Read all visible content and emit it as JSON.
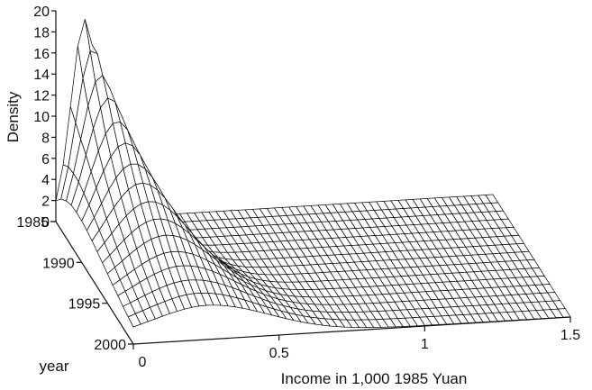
{
  "chart_data": {
    "type": "surface",
    "title": "",
    "xlabel": "Income in 1,000 1985 Yuan",
    "ylabel": "year",
    "zlabel": "Density",
    "x_ticks": [
      "0",
      "0.5",
      "1",
      "1.5"
    ],
    "x_range": [
      0,
      1.5
    ],
    "year_ticks": [
      "1985",
      "1990",
      "1995",
      "2000"
    ],
    "year_range": [
      1985,
      2000
    ],
    "z_ticks": [
      "0",
      "2",
      "4",
      "6",
      "8",
      "10",
      "12",
      "14",
      "16",
      "18",
      "20"
    ],
    "z_range": [
      0,
      20
    ],
    "grid": false,
    "peak_series": [
      {
        "year": 1985,
        "mode_income": 0.1,
        "peak_density": 19.0
      },
      {
        "year": 1986,
        "mode_income": 0.11,
        "peak_density": 17.0
      },
      {
        "year": 1987,
        "mode_income": 0.12,
        "peak_density": 15.2
      },
      {
        "year": 1988,
        "mode_income": 0.13,
        "peak_density": 13.8
      },
      {
        "year": 1989,
        "mode_income": 0.14,
        "peak_density": 12.3
      },
      {
        "year": 1990,
        "mode_income": 0.15,
        "peak_density": 11.0
      },
      {
        "year": 1991,
        "mode_income": 0.16,
        "peak_density": 9.8
      },
      {
        "year": 1992,
        "mode_income": 0.17,
        "peak_density": 8.7
      },
      {
        "year": 1993,
        "mode_income": 0.18,
        "peak_density": 7.7
      },
      {
        "year": 1994,
        "mode_income": 0.19,
        "peak_density": 6.8
      },
      {
        "year": 1995,
        "mode_income": 0.2,
        "peak_density": 6.0
      },
      {
        "year": 1996,
        "mode_income": 0.21,
        "peak_density": 5.2
      },
      {
        "year": 1997,
        "mode_income": 0.22,
        "peak_density": 4.6
      },
      {
        "year": 1998,
        "mode_income": 0.23,
        "peak_density": 4.0
      },
      {
        "year": 1999,
        "mode_income": 0.24,
        "peak_density": 3.5
      },
      {
        "year": 2000,
        "mode_income": 0.25,
        "peak_density": 3.1
      }
    ]
  }
}
